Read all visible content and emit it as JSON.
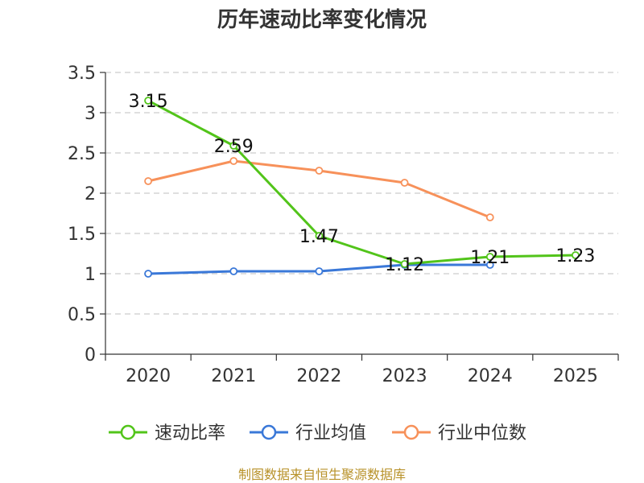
{
  "chart_data": {
    "type": "line",
    "title": "历年速动比率变化情况",
    "categories": [
      "2020",
      "2021",
      "2022",
      "2023",
      "2024",
      "2025"
    ],
    "ylim": [
      0,
      3.5
    ],
    "yticks": [
      0,
      0.5,
      1,
      1.5,
      2,
      2.5,
      3,
      3.5
    ],
    "ytick_labels": [
      "0",
      "0.5",
      "1",
      "1.5",
      "2",
      "2.5",
      "3",
      "3.5"
    ],
    "grid": true,
    "legend_position": "bottom",
    "series": [
      {
        "name": "速动比率",
        "color": "#52c41a",
        "values": [
          3.15,
          2.59,
          1.47,
          1.12,
          1.21,
          1.23
        ],
        "labels": [
          "3.15",
          "2.59",
          "1.47",
          "1.12",
          "1.21",
          "1.23"
        ]
      },
      {
        "name": "行业均值",
        "color": "#3a78d8",
        "values": [
          1.0,
          1.03,
          1.03,
          1.11,
          1.11,
          null
        ]
      },
      {
        "name": "行业中位数",
        "color": "#f7915a",
        "values": [
          2.15,
          2.4,
          2.28,
          2.13,
          1.7,
          null
        ]
      }
    ]
  },
  "footer": {
    "source": "制图数据来自恒生聚源数据库"
  }
}
